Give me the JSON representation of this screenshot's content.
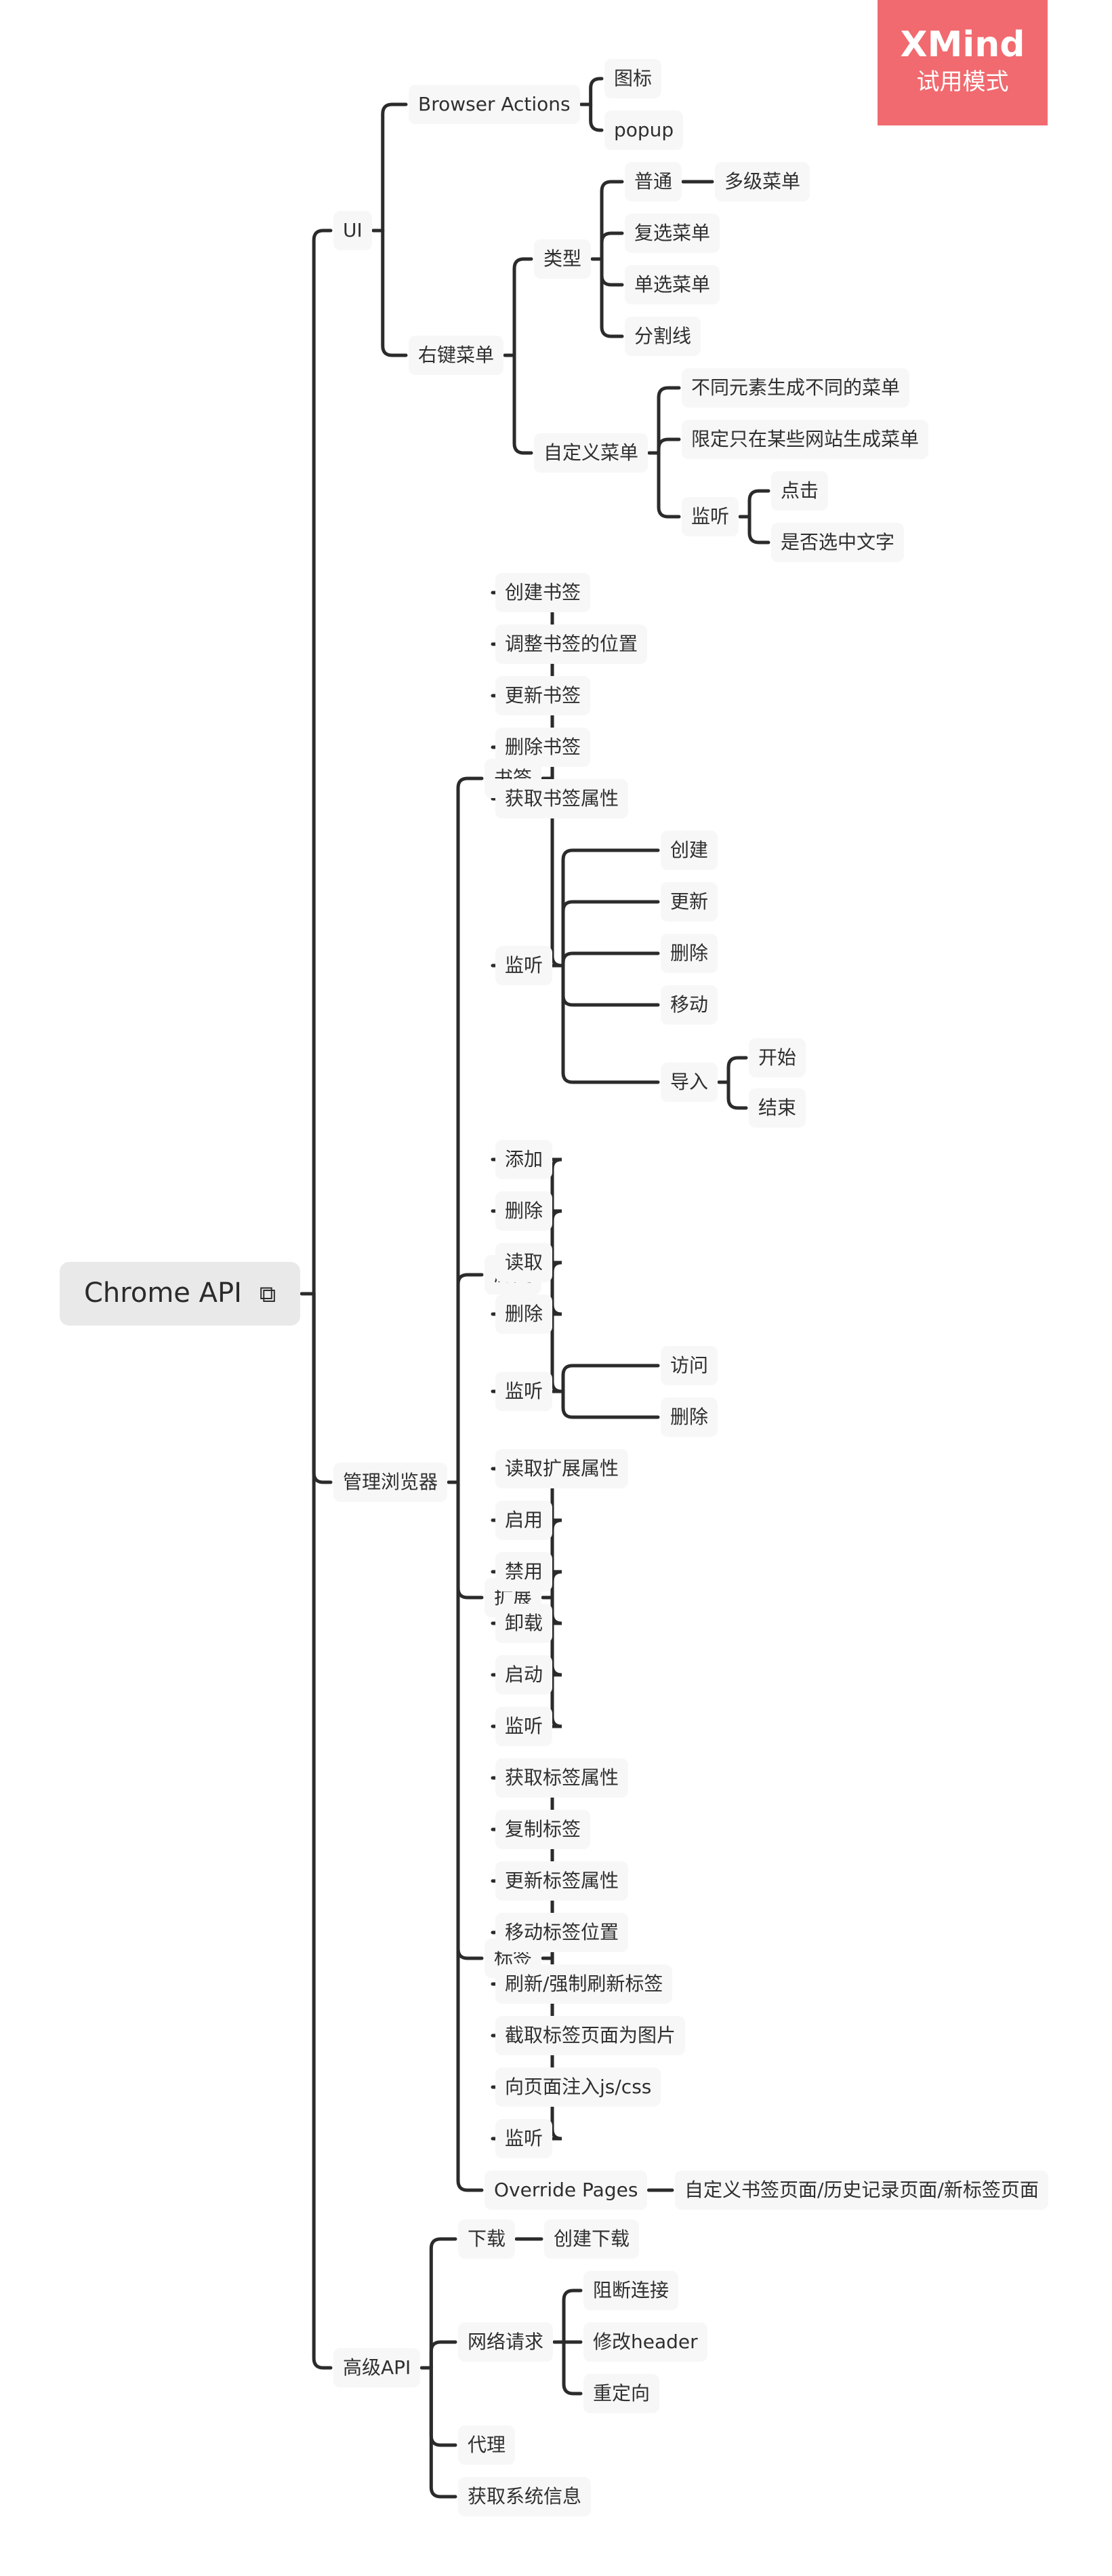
{
  "watermark": {
    "brand": "XMind",
    "mode": "试用模式",
    "color": "#f06a6f"
  },
  "style": {
    "line_color": "#2b2b2b",
    "node_bg": "#f7f7f7",
    "root_bg": "#e9e9e9"
  },
  "root": {
    "label": "Chrome API",
    "icon": "external-link-icon",
    "children": [
      {
        "label": "UI",
        "children": [
          {
            "label": "Browser Actions",
            "children": [
              {
                "label": "图标"
              },
              {
                "label": "popup"
              }
            ]
          },
          {
            "label": "右键菜单",
            "children": [
              {
                "label": "类型",
                "children": [
                  {
                    "label": "普通",
                    "children": [
                      {
                        "label": "多级菜单"
                      }
                    ]
                  },
                  {
                    "label": "复选菜单"
                  },
                  {
                    "label": "单选菜单"
                  },
                  {
                    "label": "分割线"
                  }
                ]
              },
              {
                "label": "自定义菜单",
                "children": [
                  {
                    "label": "不同元素生成不同的菜单"
                  },
                  {
                    "label": "限定只在某些网站生成菜单"
                  },
                  {
                    "label": "监听",
                    "children": [
                      {
                        "label": "点击"
                      },
                      {
                        "label": "是否选中文字"
                      }
                    ]
                  }
                ]
              }
            ]
          }
        ]
      },
      {
        "label": "管理浏览器",
        "children": [
          {
            "label": "书签",
            "children": [
              {
                "label": "创建书签"
              },
              {
                "label": "调整书签的位置"
              },
              {
                "label": "更新书签"
              },
              {
                "label": "删除书签"
              },
              {
                "label": "获取书签属性"
              },
              {
                "label": "监听",
                "children": [
                  {
                    "label": "创建"
                  },
                  {
                    "label": "更新"
                  },
                  {
                    "label": "删除"
                  },
                  {
                    "label": "移动"
                  },
                  {
                    "label": "导入",
                    "children": [
                      {
                        "label": "开始"
                      },
                      {
                        "label": "结束"
                      }
                    ]
                  }
                ]
              }
            ]
          },
          {
            "label": "历史",
            "children": [
              {
                "label": "添加"
              },
              {
                "label": "删除"
              },
              {
                "label": "读取"
              },
              {
                "label": "删除"
              },
              {
                "label": "监听",
                "children": [
                  {
                    "label": "访问"
                  },
                  {
                    "label": "删除"
                  }
                ]
              }
            ]
          },
          {
            "label": "扩展",
            "children": [
              {
                "label": "读取扩展属性"
              },
              {
                "label": "启用"
              },
              {
                "label": "禁用"
              },
              {
                "label": "卸载"
              },
              {
                "label": "启动"
              },
              {
                "label": "监听"
              }
            ]
          },
          {
            "label": "标签",
            "children": [
              {
                "label": "获取标签属性"
              },
              {
                "label": "复制标签"
              },
              {
                "label": "更新标签属性"
              },
              {
                "label": "移动标签位置"
              },
              {
                "label": "刷新/强制刷新标签"
              },
              {
                "label": "截取标签页面为图片"
              },
              {
                "label": "向页面注入js/css"
              },
              {
                "label": "监听"
              }
            ]
          },
          {
            "label": "Override Pages",
            "children": [
              {
                "label": "自定义书签页面/历史记录页面/新标签页面"
              }
            ]
          }
        ]
      },
      {
        "label": "高级API",
        "children": [
          {
            "label": "下载",
            "children": [
              {
                "label": "创建下载"
              }
            ]
          },
          {
            "label": "网络请求",
            "children": [
              {
                "label": "阻断连接"
              },
              {
                "label": "修改header"
              },
              {
                "label": "重定向"
              }
            ]
          },
          {
            "label": "代理"
          },
          {
            "label": "获取系统信息"
          }
        ]
      }
    ]
  }
}
